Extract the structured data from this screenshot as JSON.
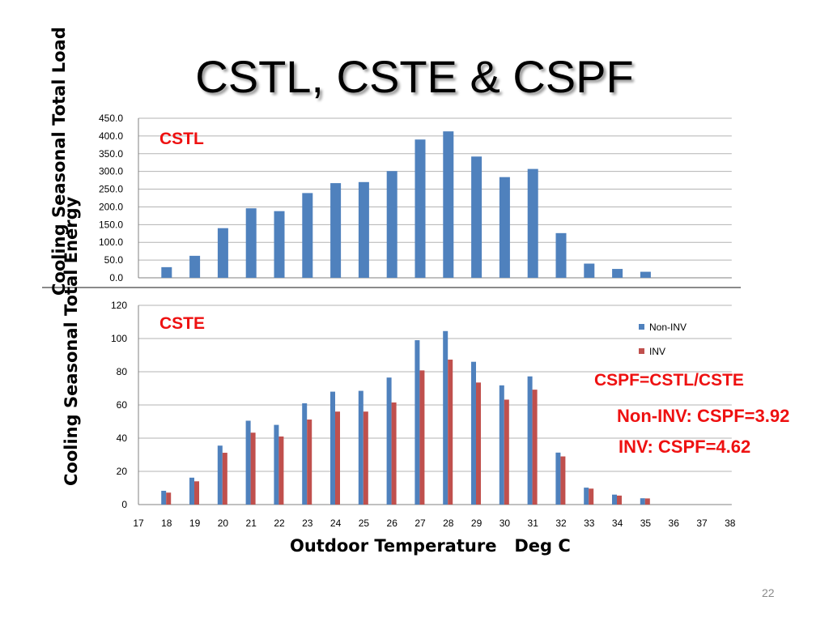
{
  "slide": {
    "title": "CSTL, CSTE & CSPF",
    "page_number": "22",
    "x_axis_label": "Outdoor Temperature   Deg C",
    "annotations": {
      "formula": "CSPF=CSTL/CSTE",
      "noninv": "Non-INV: CSPF=3.92",
      "inv": "INV: CSPF=4.62"
    }
  },
  "chart_data": [
    {
      "type": "bar",
      "title": "CSTL",
      "ylabel": "Cooling Seasonal Total Load",
      "xlabel": "",
      "categories": [
        "17",
        "18",
        "19",
        "20",
        "21",
        "22",
        "23",
        "24",
        "25",
        "26",
        "27",
        "28",
        "29",
        "30",
        "31",
        "32",
        "33",
        "34",
        "35",
        "36",
        "37",
        "38"
      ],
      "ylim": [
        0,
        450
      ],
      "yticks": [
        "0.0",
        "50.0",
        "100.0",
        "150.0",
        "200.0",
        "250.0",
        "300.0",
        "350.0",
        "400.0",
        "450.0"
      ],
      "series": [
        {
          "values": [
            0,
            30,
            62,
            140,
            196,
            188,
            239,
            267,
            270,
            301,
            390,
            413,
            342,
            284,
            307,
            126,
            40,
            25,
            17,
            0,
            0,
            0
          ],
          "color": "#4f81bd"
        }
      ],
      "grid": true
    },
    {
      "type": "bar",
      "title": "CSTE",
      "ylabel": "Cooling Seasonal Total Energy",
      "xlabel": "Outdoor Temperature   Deg C",
      "categories": [
        "17",
        "18",
        "19",
        "20",
        "21",
        "22",
        "23",
        "24",
        "25",
        "26",
        "27",
        "28",
        "29",
        "30",
        "31",
        "32",
        "33",
        "34",
        "35",
        "36",
        "37",
        "38"
      ],
      "ylim": [
        0,
        120
      ],
      "yticks": [
        "0",
        "20",
        "40",
        "60",
        "80",
        "100",
        "120"
      ],
      "series": [
        {
          "name": "Non-INV",
          "values": [
            0,
            8.3,
            16.2,
            35.5,
            50.5,
            48,
            61,
            68,
            68.5,
            76.5,
            99,
            104.5,
            86,
            71.8,
            77.2,
            31.3,
            10.2,
            6,
            3.8,
            0,
            0,
            0
          ],
          "color": "#4f81bd"
        },
        {
          "name": "INV",
          "values": [
            0,
            7.2,
            14,
            31.2,
            43.3,
            41,
            51.2,
            56,
            56,
            61.5,
            80.8,
            87.3,
            73.5,
            63.2,
            69.2,
            29,
            9.6,
            5.4,
            3.7,
            0,
            0,
            0
          ],
          "color": "#c0504d"
        }
      ],
      "legend": "right",
      "grid": true
    }
  ]
}
